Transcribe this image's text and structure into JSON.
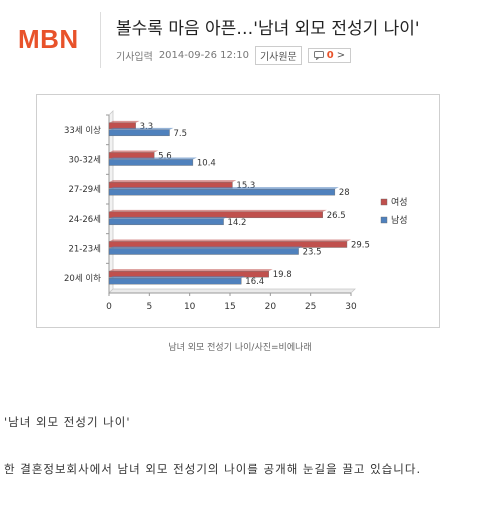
{
  "header": {
    "logo": "MBN",
    "title": "볼수록 마음 아픈…'남녀 외모 전성기 나이'",
    "meta_label": "기사입력",
    "meta_date": "2014-09-26 12:10",
    "original_button": "기사원문",
    "comment_count": "0",
    "comment_arrow": ">"
  },
  "chart_data": {
    "type": "bar",
    "orientation": "horizontal",
    "categories": [
      "33세 이상",
      "30-32세",
      "27-29세",
      "24-26세",
      "21-23세",
      "20세 이하"
    ],
    "series": [
      {
        "name": "여성",
        "color": "#c0504d",
        "values": [
          3.3,
          5.6,
          15.3,
          26.5,
          29.5,
          19.8
        ]
      },
      {
        "name": "남성",
        "color": "#4f81bd",
        "values": [
          7.5,
          10.4,
          28,
          14.2,
          23.5,
          16.4
        ]
      }
    ],
    "xlim": [
      0,
      30
    ],
    "xticks": [
      "0",
      "5",
      "10",
      "15",
      "20",
      "25",
      "30"
    ],
    "legend_position": "right",
    "grid": false
  },
  "caption": "남녀 외모 전성기 나이/사진=비에나래",
  "article": {
    "quote": "'남녀 외모 전성기 나이'",
    "paragraph": "한 결혼정보회사에서 남녀 외모 전성기의 나이를 공개해 눈길을 끌고 있습니다."
  }
}
